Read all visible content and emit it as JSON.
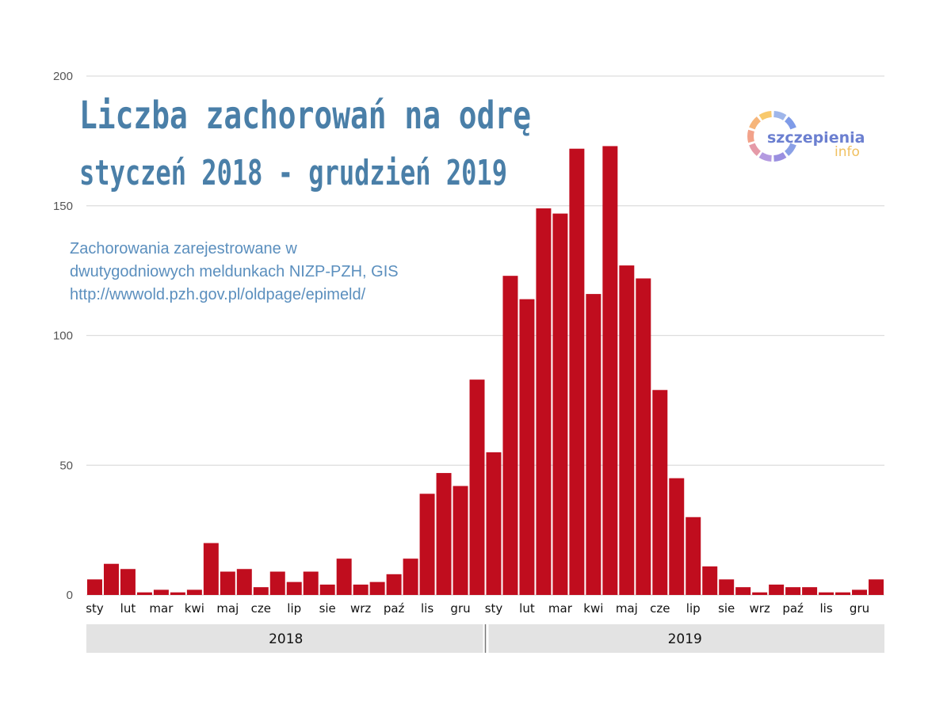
{
  "chart_data": {
    "type": "bar",
    "title": "Liczba zachorowań na odrę",
    "subtitle_title": "styczeń 2018 - grudzień 2019",
    "source_lines": [
      "Zachorowania zarejestrowane w",
      "dwutygodniowych meldunkach NIZP-PZH, GIS",
      "http://wwwold.pzh.gov.pl/oldpage/epimeld/"
    ],
    "ylim": [
      0,
      200
    ],
    "yticks": [
      0,
      50,
      100,
      150,
      200
    ],
    "month_labels": [
      "sty",
      "lut",
      "mar",
      "kwi",
      "maj",
      "cze",
      "lip",
      "sie",
      "wrz",
      "paź",
      "lis",
      "gru"
    ],
    "years": [
      "2018",
      "2019"
    ],
    "values_2018": [
      6,
      12,
      10,
      1,
      2,
      1,
      2,
      20,
      9,
      10,
      3,
      9,
      5,
      9,
      4,
      14,
      4,
      5,
      8,
      14,
      39,
      47,
      42,
      83
    ],
    "values_2019": [
      55,
      123,
      114,
      149,
      147,
      172,
      116,
      173,
      127,
      122,
      79,
      45,
      30,
      11,
      6,
      3,
      1,
      4,
      3,
      3,
      1,
      1,
      2,
      6
    ],
    "bar_color": "#c00d1e",
    "grid_color": "#dddddd",
    "year_band_color": "#e3e3e3",
    "logo": {
      "text_main": "szczepienia",
      "text_sub": "info"
    }
  }
}
